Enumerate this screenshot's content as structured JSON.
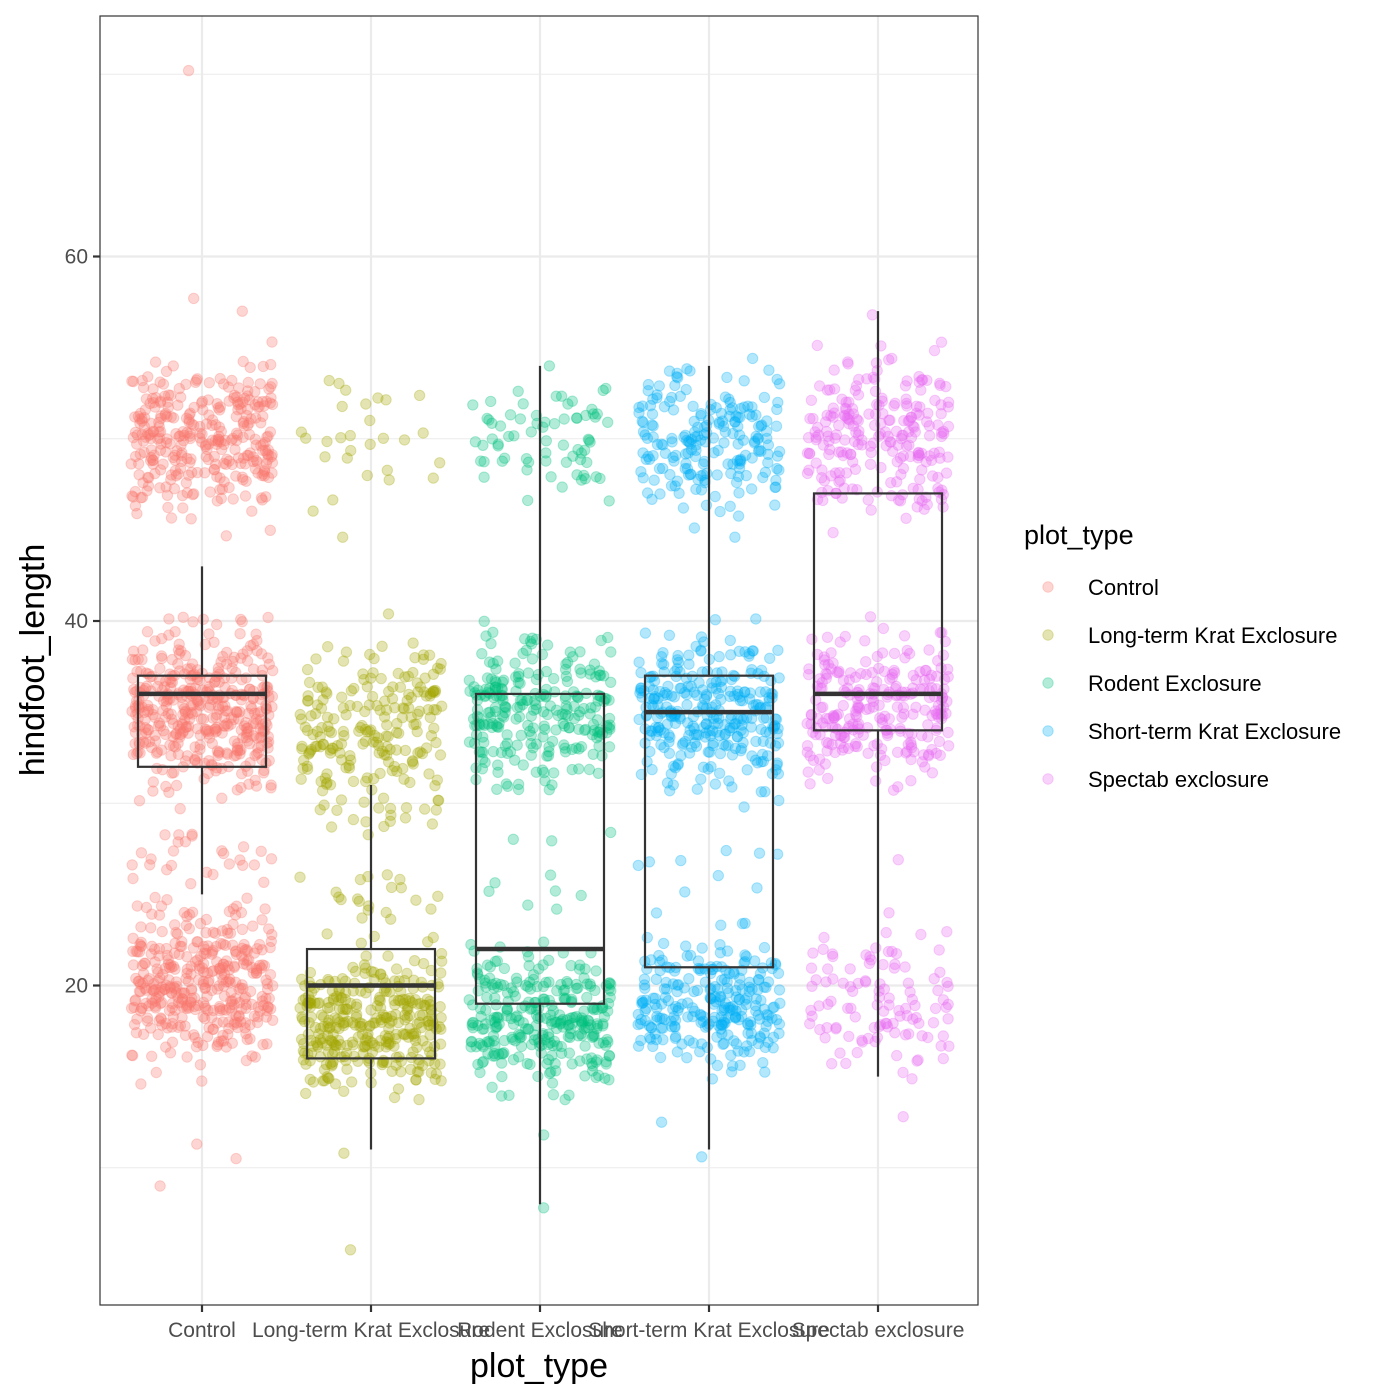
{
  "chart_data": {
    "type": "boxplot-jitter",
    "xlabel": "plot_type",
    "ylabel": "hindfoot_length",
    "ylim": [
      3,
      73
    ],
    "y_ticks": [
      20,
      40,
      60
    ],
    "y_tick_labels": [
      "20",
      "40",
      "60"
    ],
    "y_minor_ticks": [
      10,
      30,
      50,
      70
    ],
    "grid": true,
    "legend_position": "right",
    "legend": {
      "title": "plot_type",
      "entries": [
        "Control",
        "Long-term Krat Exclosure",
        "Rodent Exclosure",
        "Short-term Krat Exclosure",
        "Spectab exclosure"
      ]
    },
    "categories": [
      "Control",
      "Long-term Krat Exclosure",
      "Rodent Exclosure",
      "Short-term Krat Exclosure",
      "Spectab exclosure"
    ],
    "colors": [
      "#F8766D",
      "#A3A500",
      "#00BF7D",
      "#00B0F6",
      "#E76BF3"
    ],
    "boxes": [
      {
        "whisker_low": 25,
        "q1": 32,
        "median": 36,
        "q3": 37,
        "whisker_high": 43
      },
      {
        "whisker_low": 11,
        "q1": 16,
        "median": 20,
        "q3": 22,
        "whisker_high": 31
      },
      {
        "whisker_low": 8,
        "q1": 19,
        "median": 22,
        "q3": 36,
        "whisker_high": 54
      },
      {
        "whisker_low": 11,
        "q1": 21,
        "median": 35,
        "q3": 37,
        "whisker_high": 54
      },
      {
        "whisker_low": 15,
        "q1": 34,
        "median": 36,
        "q3": 47,
        "whisker_high": 57
      }
    ],
    "point_clusters": [
      [
        {
          "min": 44,
          "max": 55,
          "center": 50,
          "n": 320
        },
        {
          "min": 29,
          "max": 40,
          "center": 35,
          "n": 420
        },
        {
          "min": 13,
          "max": 24,
          "center": 20,
          "n": 380
        },
        {
          "min": 24,
          "max": 29,
          "center": 26.5,
          "n": 30
        }
      ],
      [
        {
          "min": 44,
          "max": 54,
          "center": 50,
          "n": 28
        },
        {
          "min": 27,
          "max": 40,
          "center": 34,
          "n": 220
        },
        {
          "min": 12,
          "max": 23,
          "center": 18,
          "n": 340
        },
        {
          "min": 23,
          "max": 27,
          "center": 25,
          "n": 20
        }
      ],
      [
        {
          "min": 45,
          "max": 54,
          "center": 50,
          "n": 70
        },
        {
          "min": 29,
          "max": 40,
          "center": 35,
          "n": 260
        },
        {
          "min": 13,
          "max": 23,
          "center": 18,
          "n": 300
        },
        {
          "min": 23,
          "max": 29,
          "center": 26,
          "n": 10
        }
      ],
      [
        {
          "min": 44,
          "max": 55,
          "center": 50,
          "n": 200
        },
        {
          "min": 29,
          "max": 40,
          "center": 35,
          "n": 300
        },
        {
          "min": 14,
          "max": 23,
          "center": 19,
          "n": 260
        },
        {
          "min": 23,
          "max": 29,
          "center": 26,
          "n": 10
        }
      ],
      [
        {
          "min": 43,
          "max": 55,
          "center": 50,
          "n": 230
        },
        {
          "min": 29,
          "max": 40,
          "center": 35,
          "n": 260
        },
        {
          "min": 13,
          "max": 24,
          "center": 19,
          "n": 110
        }
      ]
    ],
    "outliers": [
      {
        "category": 0,
        "y": 70.2
      },
      {
        "category": 0,
        "y": 57.7
      },
      {
        "category": 0,
        "y": 57
      },
      {
        "category": 0,
        "y": 9
      },
      {
        "category": 0,
        "y": 10.5
      },
      {
        "category": 0,
        "y": 11.3
      },
      {
        "category": 1,
        "y": 5.5
      },
      {
        "category": 1,
        "y": 10.8
      },
      {
        "category": 1,
        "y": 44.6
      },
      {
        "category": 2,
        "y": 7.8
      },
      {
        "category": 2,
        "y": 11.8
      },
      {
        "category": 2,
        "y": 54
      },
      {
        "category": 3,
        "y": 10.6
      },
      {
        "category": 3,
        "y": 12.5
      },
      {
        "category": 3,
        "y": 44.6
      },
      {
        "category": 4,
        "y": 56.8
      },
      {
        "category": 4,
        "y": 12.8
      },
      {
        "category": 4,
        "y": 26.9
      }
    ]
  }
}
